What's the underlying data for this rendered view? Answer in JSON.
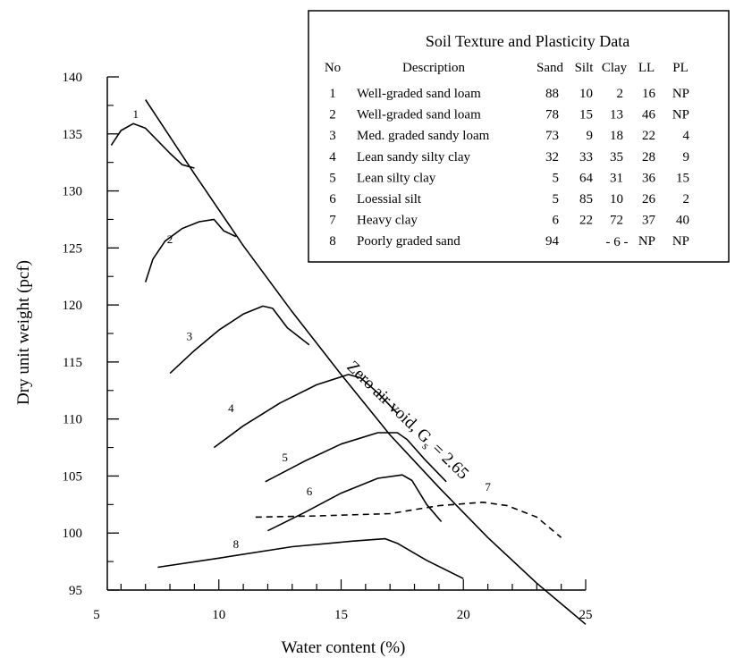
{
  "chart_data": {
    "type": "line",
    "xlabel": "Water content (%)",
    "ylabel": "Dry unit weight (pcf)",
    "xlim": [
      5,
      25
    ],
    "ylim": [
      95,
      140
    ],
    "xticks": [
      5,
      10,
      15,
      20,
      25
    ],
    "yticks": [
      95,
      100,
      105,
      110,
      115,
      120,
      125,
      130,
      135,
      140
    ],
    "grid": false,
    "series": [
      {
        "name": "1",
        "style": "solid",
        "x": [
          5.6,
          6.0,
          6.5,
          7.0,
          7.5,
          8.0,
          8.5,
          9.0
        ],
        "y": [
          134.0,
          135.3,
          135.9,
          135.5,
          134.4,
          133.3,
          132.3,
          132.0
        ]
      },
      {
        "name": "2",
        "style": "solid",
        "x": [
          7.0,
          7.3,
          7.8,
          8.5,
          9.2,
          9.8,
          10.2,
          10.7
        ],
        "y": [
          122.0,
          124.0,
          125.6,
          126.7,
          127.3,
          127.5,
          126.5,
          126.0
        ]
      },
      {
        "name": "3",
        "style": "solid",
        "x": [
          8.0,
          9.0,
          10.0,
          11.0,
          11.8,
          12.2,
          12.8,
          13.7
        ],
        "y": [
          114.0,
          116.0,
          117.8,
          119.2,
          119.9,
          119.7,
          118.0,
          116.5
        ]
      },
      {
        "name": "4",
        "style": "solid",
        "x": [
          9.8,
          11.0,
          12.5,
          14.0,
          15.3,
          15.8,
          16.5,
          17.3
        ],
        "y": [
          107.5,
          109.4,
          111.4,
          113.0,
          113.9,
          113.6,
          112.3,
          110.5
        ]
      },
      {
        "name": "5",
        "style": "solid",
        "x": [
          11.9,
          13.5,
          15.0,
          16.5,
          17.3,
          17.7,
          18.4,
          19.3
        ],
        "y": [
          104.5,
          106.3,
          107.8,
          108.8,
          108.8,
          108.2,
          106.5,
          104.5
        ]
      },
      {
        "name": "6",
        "style": "solid",
        "x": [
          12.0,
          13.5,
          15.0,
          16.5,
          17.5,
          17.9,
          18.5,
          19.1
        ],
        "y": [
          100.2,
          101.8,
          103.5,
          104.8,
          105.1,
          104.6,
          102.5,
          101.0
        ]
      },
      {
        "name": "7",
        "style": "dashed",
        "x": [
          11.5,
          14.0,
          17.0,
          19.0,
          20.8,
          21.8,
          23.0,
          24.0
        ],
        "y": [
          101.4,
          101.5,
          101.7,
          102.4,
          102.7,
          102.4,
          101.4,
          99.6
        ]
      },
      {
        "name": "8",
        "style": "solid",
        "x": [
          7.5,
          10.0,
          13.0,
          15.5,
          16.8,
          17.3,
          18.5,
          20.0
        ],
        "y": [
          97.0,
          97.8,
          98.8,
          99.3,
          99.5,
          99.1,
          97.6,
          96.0
        ]
      },
      {
        "name": "",
        "style": "solid",
        "x": [
          7.0,
          9.0,
          11.0,
          13.0,
          15.0,
          17.0,
          19.0,
          21.0,
          23.0,
          25.0
        ],
        "y": [
          138.0,
          131.5,
          125.2,
          119.4,
          113.9,
          108.6,
          104.0,
          99.6,
          95.6,
          92.0
        ]
      }
    ],
    "curve_labels": [
      {
        "text": "1",
        "x": 6.6,
        "y": 136.4
      },
      {
        "text": "2",
        "x": 8.0,
        "y": 125.4
      },
      {
        "text": "3",
        "x": 8.8,
        "y": 116.9
      },
      {
        "text": "4",
        "x": 10.5,
        "y": 110.6
      },
      {
        "text": "5",
        "x": 12.7,
        "y": 106.3
      },
      {
        "text": "6",
        "x": 13.7,
        "y": 103.3
      },
      {
        "text": "7",
        "x": 21.0,
        "y": 103.7
      },
      {
        "text": "8",
        "x": 10.7,
        "y": 98.7
      }
    ],
    "annotation": {
      "main": "Zero air void, G",
      "sub": "s",
      "tail": " = 2.65",
      "x": 15.2,
      "y": 114.5,
      "angle": 44
    }
  },
  "legend_table": {
    "title": "Soil Texture and Plasticity Data",
    "headers": [
      "No",
      "Description",
      "Sand",
      "Silt",
      "Clay",
      "LL",
      "PL"
    ],
    "rows": [
      [
        "1",
        "Well-graded sand loam",
        "88",
        "10",
        "2",
        "16",
        "NP"
      ],
      [
        "2",
        "Well-graded sand loam",
        "78",
        "15",
        "13",
        "46",
        "NP"
      ],
      [
        "3",
        "Med. graded sandy loam",
        "73",
        "9",
        "18",
        "22",
        "4"
      ],
      [
        "4",
        "Lean sandy silty clay",
        "32",
        "33",
        "35",
        "28",
        "9"
      ],
      [
        "5",
        "Lean silty clay",
        "5",
        "64",
        "31",
        "36",
        "15"
      ],
      [
        "6",
        "Loessial silt",
        "5",
        "85",
        "10",
        "26",
        "2"
      ],
      [
        "7",
        "Heavy clay",
        "6",
        "22",
        "72",
        "37",
        "40"
      ],
      [
        "8",
        "Poorly graded sand",
        "94",
        "",
        "",
        "NP",
        "NP"
      ]
    ],
    "merged_silt_clay_row8": "- 6 -"
  }
}
